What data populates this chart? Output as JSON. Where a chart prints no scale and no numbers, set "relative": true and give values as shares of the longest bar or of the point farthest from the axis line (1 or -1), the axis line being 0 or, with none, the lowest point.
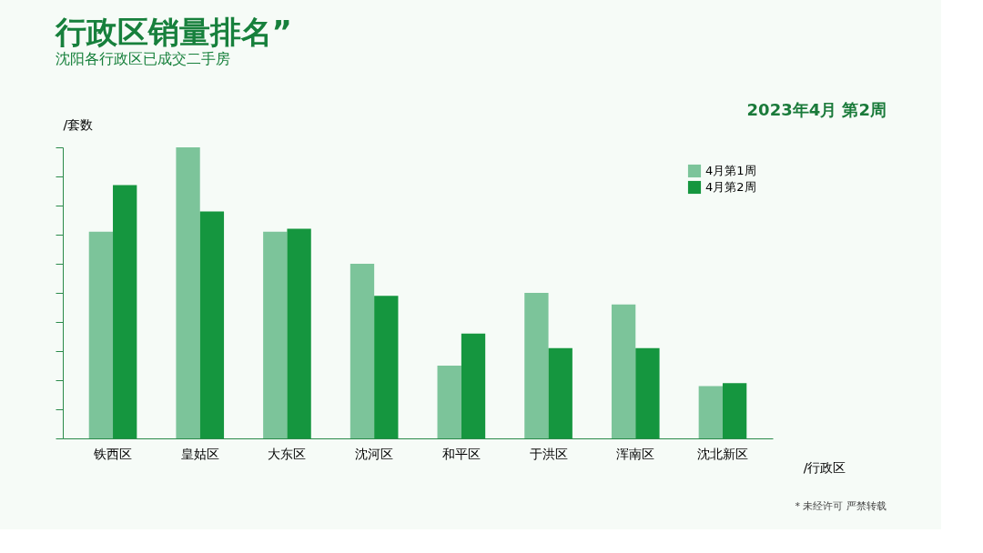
{
  "chart_data": {
    "type": "bar",
    "title": "行政区销量排名”",
    "subtitle": "沈阳各行政区已成交二手房",
    "annotations": [
      "2023年4月 第2周",
      "* 未经许可 严禁转载"
    ],
    "xlabel": "/行政区",
    "ylabel": "/套数",
    "relative": true,
    "categories": [
      "铁西区",
      "皇姑区",
      "大东区",
      "沈河区",
      "和平区",
      "于洪区",
      "浑南区",
      "沈北新区"
    ],
    "series": [
      {
        "name": "4月第1周",
        "color": "#7cc49a",
        "values": [
          0.71,
          1,
          0.71,
          0.6,
          0.25,
          0.5,
          0.46,
          0.18
        ]
      },
      {
        "name": "4月第2周",
        "color": "#15963f",
        "values": [
          0.87,
          0.78,
          0.72,
          0.49,
          0.36,
          0.31,
          0.31,
          0.19
        ]
      }
    ],
    "legend": "top right",
    "grid": false
  }
}
